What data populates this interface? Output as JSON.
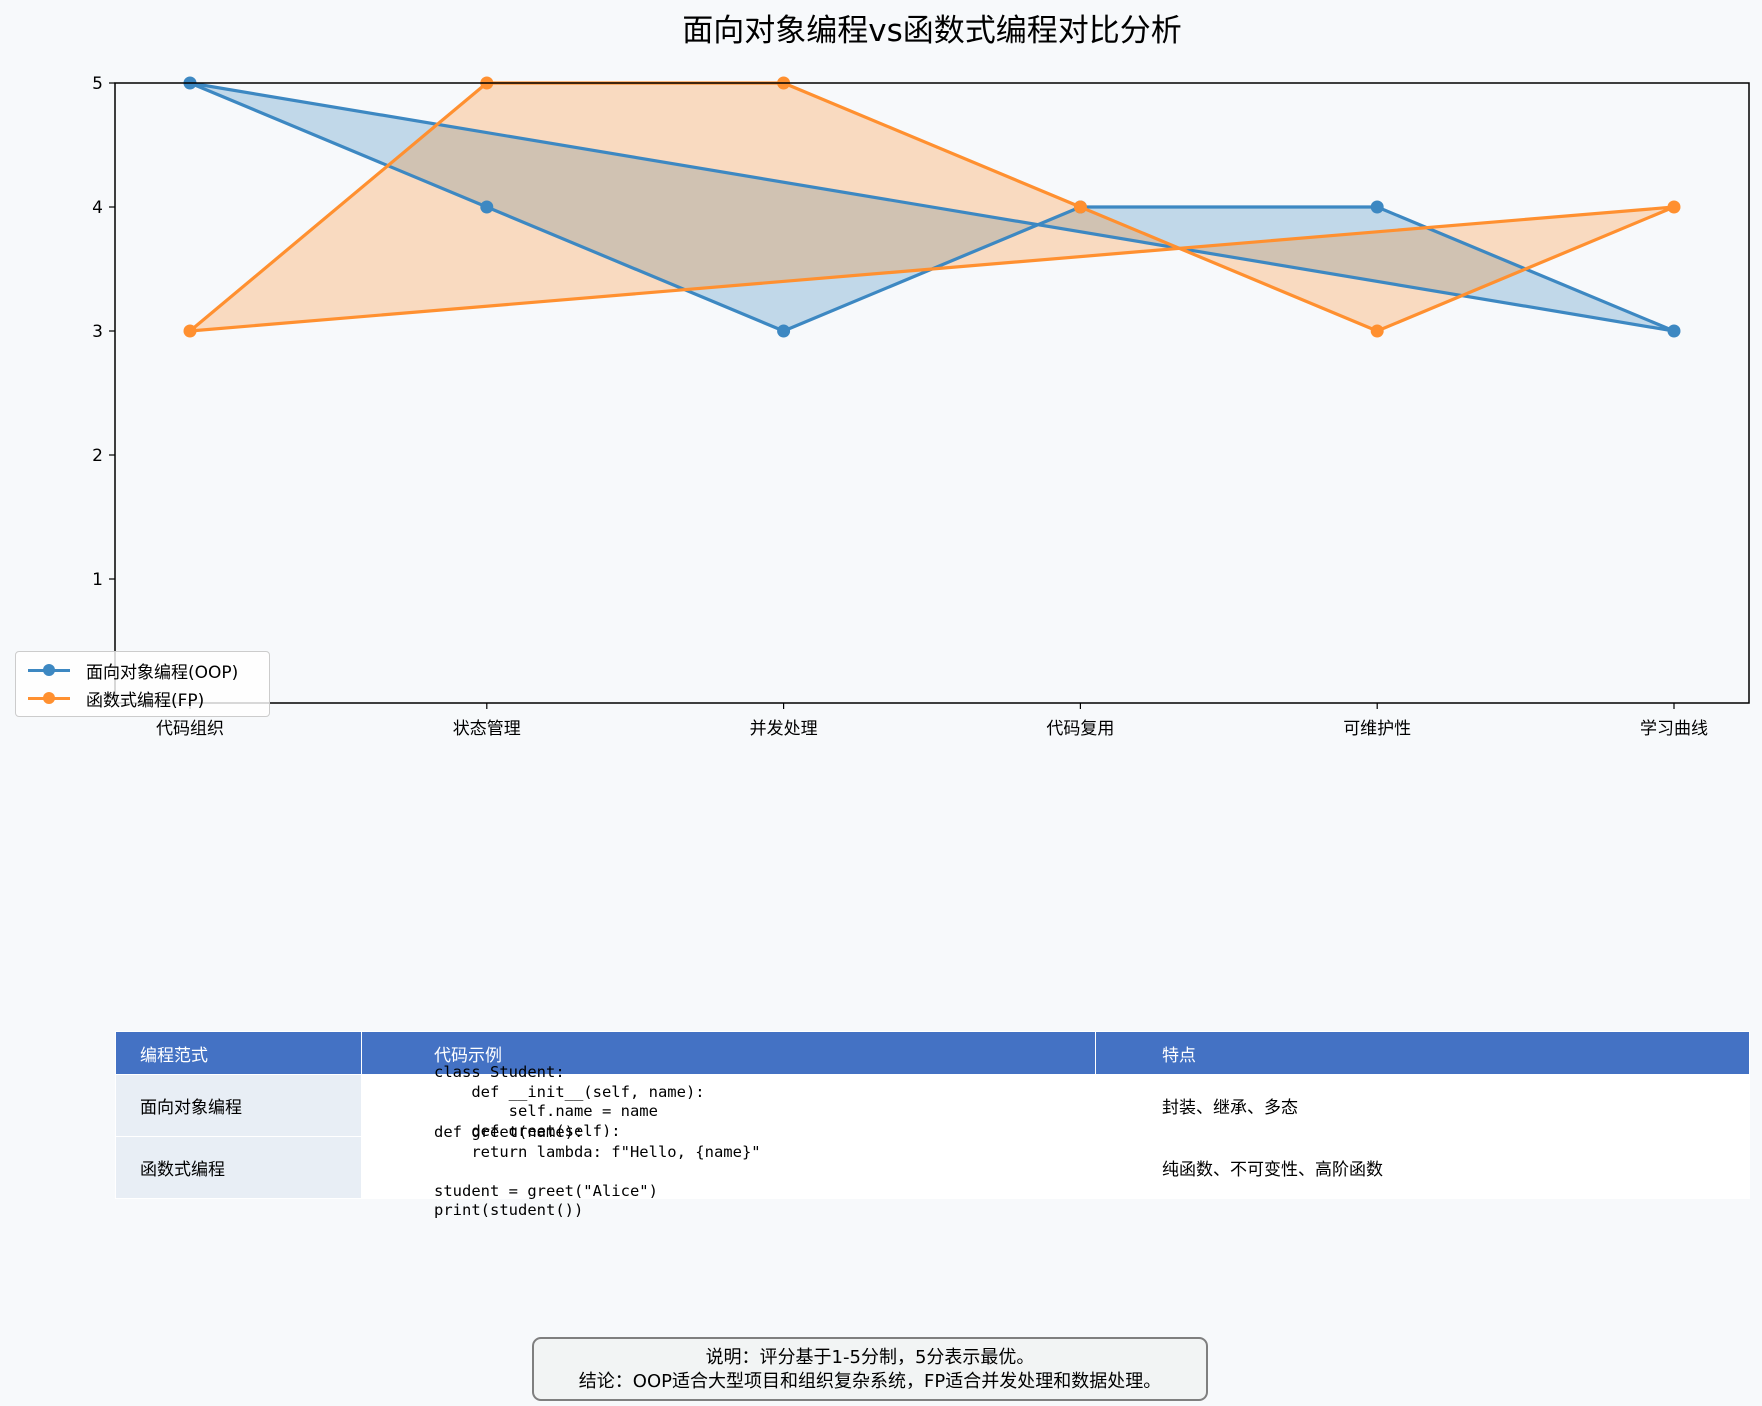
{
  "chart_data": {
    "type": "line",
    "title": "面向对象编程vs函数式编程对比分析",
    "categories": [
      "代码组织",
      "状态管理",
      "并发处理",
      "代码复用",
      "可维护性",
      "学习曲线"
    ],
    "ylim": [
      0,
      5
    ],
    "yticks": [
      "1",
      "2",
      "3",
      "4",
      "5"
    ],
    "grid": false,
    "legend_position": "lower-left",
    "series": [
      {
        "name": "面向对象编程(OOP)",
        "values": [
          5,
          4,
          3,
          4,
          4,
          3
        ],
        "color": "#1f77b4"
      },
      {
        "name": "函数式编程(FP)",
        "values": [
          3,
          5,
          5,
          4,
          3,
          4
        ],
        "color": "#ff7f0e"
      }
    ]
  },
  "table": {
    "headers": [
      "编程范式",
      "代码示例",
      "特点"
    ],
    "rows": [
      {
        "name": "面向对象编程",
        "code": "class Student:\n    def __init__(self, name):\n        self.name = name\n    def greet(self):",
        "features": "封装、继承、多态"
      },
      {
        "name": "函数式编程",
        "code": "def greet(name):\n    return lambda: f\"Hello, {name}\"\n\nstudent = greet(\"Alice\")\nprint(student())",
        "features": "纯函数、不可变性、高阶函数"
      }
    ],
    "header_color": "#4472c4",
    "first_col_color": "#e8eef5"
  },
  "note": {
    "line1": "说明：评分基于1-5分制，5分表示最优。",
    "line2": "结论：OOP适合大型项目和组织复杂系统，FP适合并发处理和数据处理。"
  }
}
